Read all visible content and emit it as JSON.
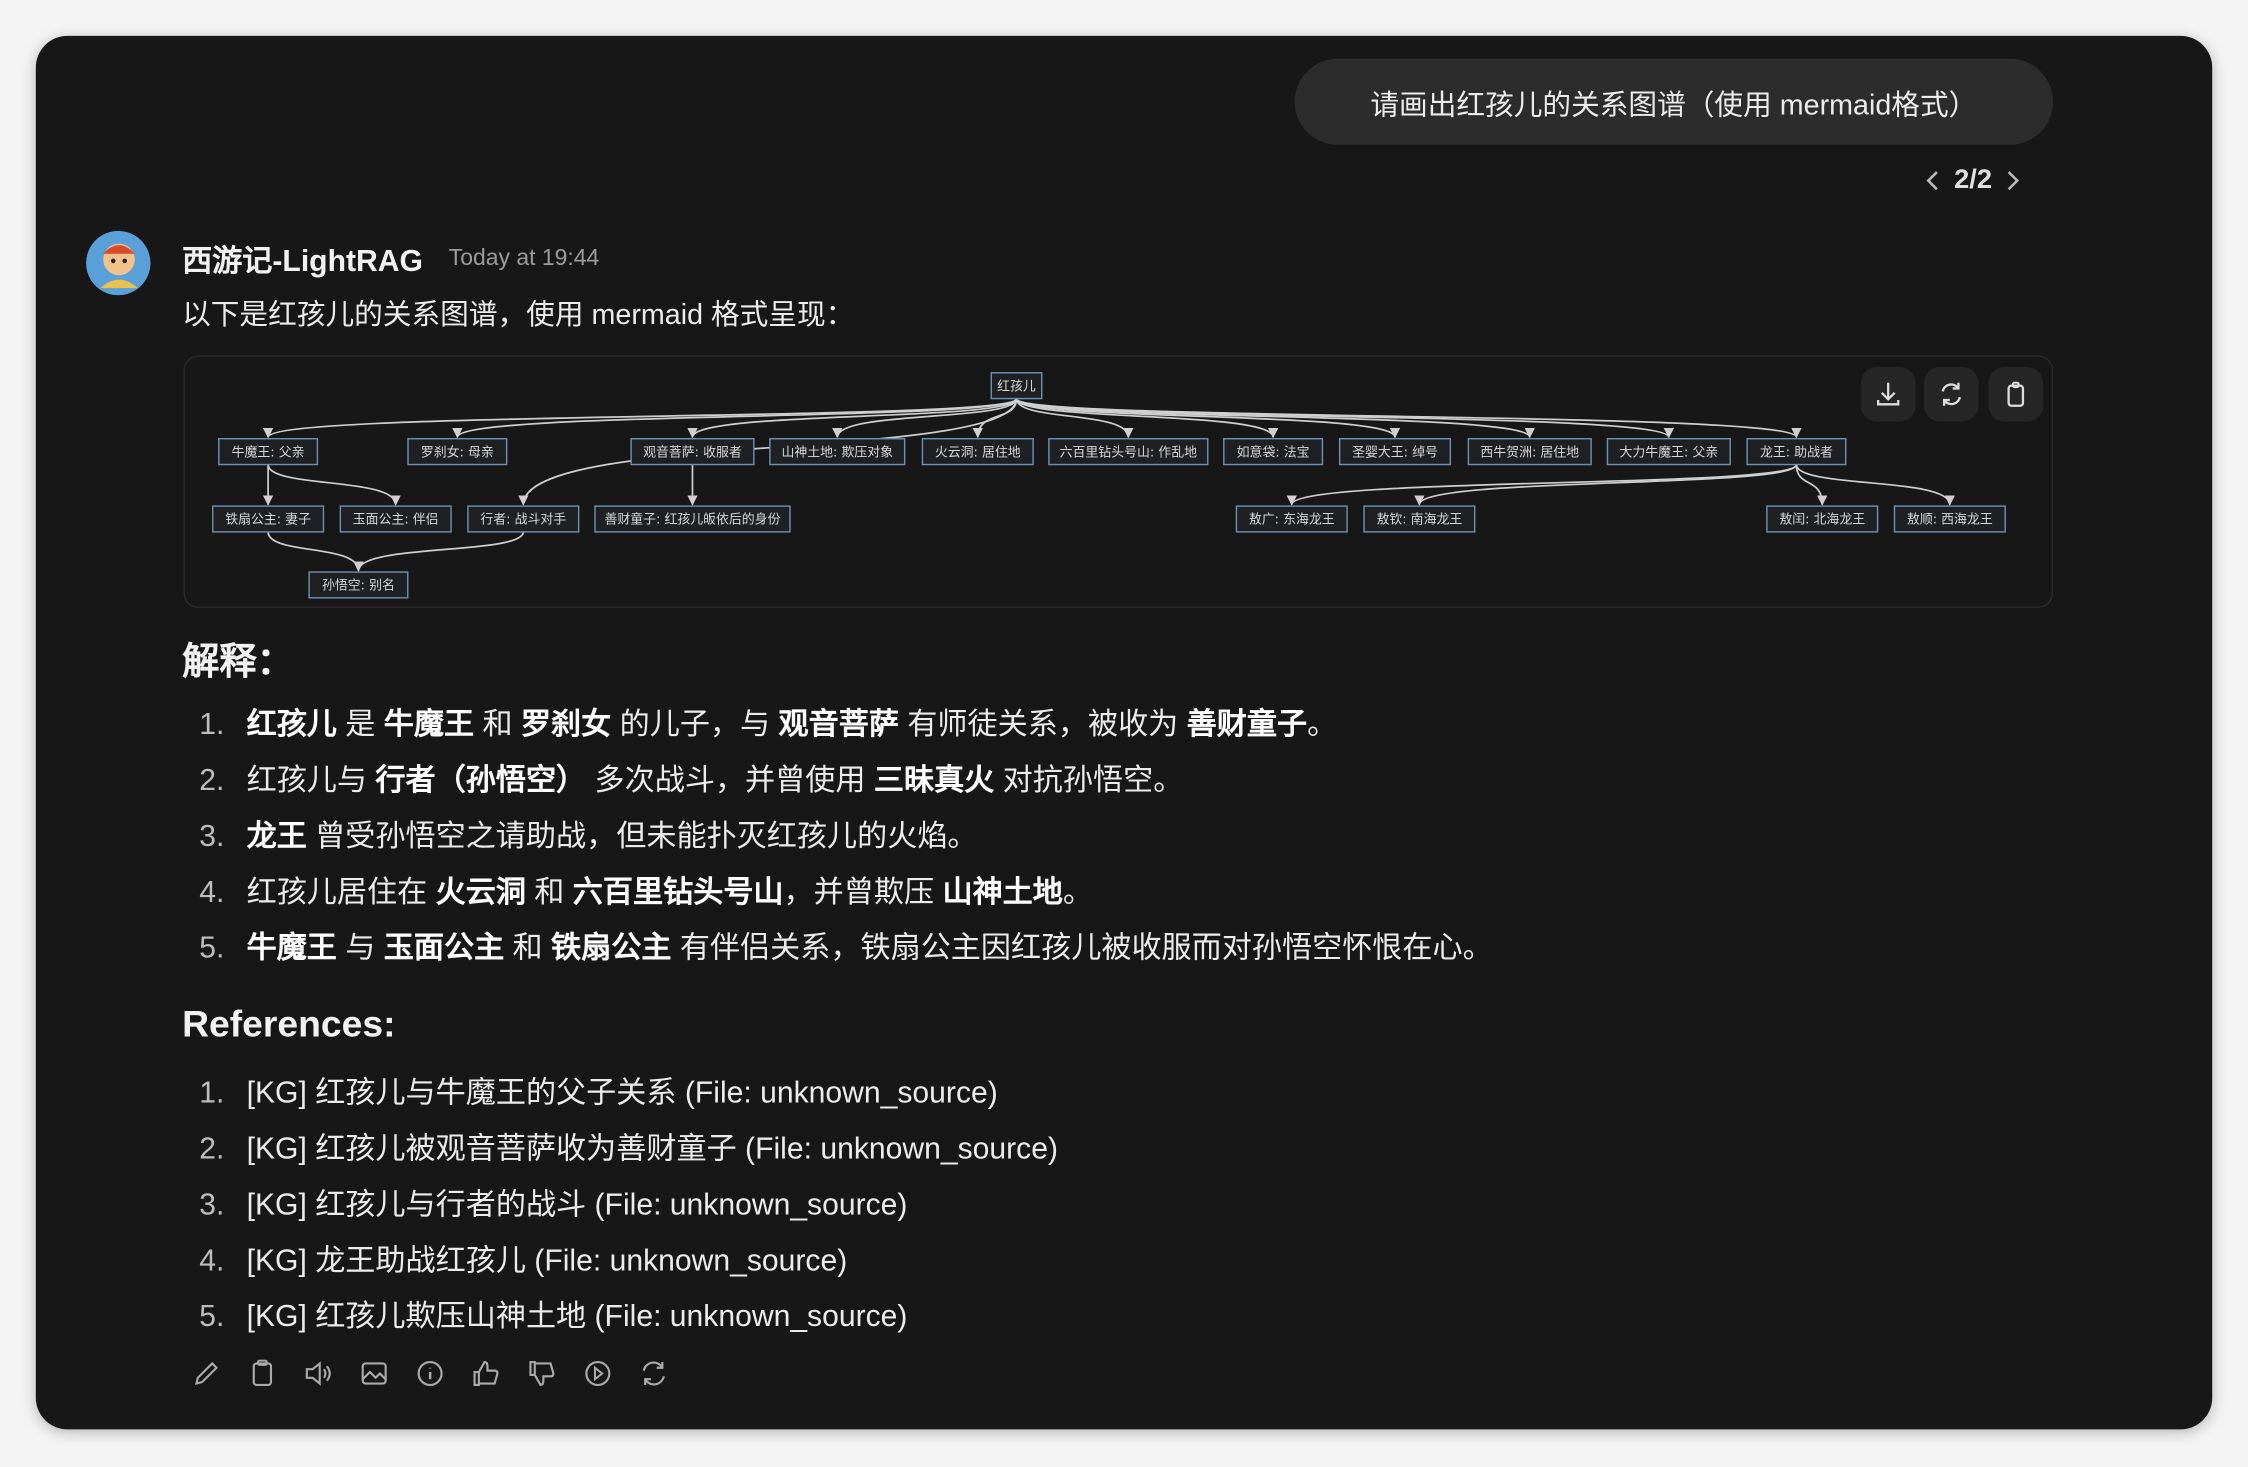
{
  "user_message": "请画出红孩儿的关系图谱（使用 mermaid格式）",
  "pager": {
    "label": "2/2"
  },
  "assistant": {
    "name": "西游记-LightRAG",
    "time": "Today at 19:44",
    "intro": "以下是红孩儿的关系图谱，使用 mermaid 格式呈现："
  },
  "diagram": {
    "toolbar": [
      {
        "icon": "download-icon"
      },
      {
        "icon": "refresh-icon"
      },
      {
        "icon": "clipboard-icon"
      }
    ],
    "nodes": [
      {
        "id": "root",
        "label": "红孩儿"
      },
      {
        "id": "nmw",
        "label": "牛魔王: 父亲"
      },
      {
        "id": "lcn",
        "label": "罗刹女: 母亲"
      },
      {
        "id": "gy",
        "label": "观音菩萨: 收服者"
      },
      {
        "id": "ss",
        "label": "山神土地: 欺压对象"
      },
      {
        "id": "hyd",
        "label": "火云洞: 居住地"
      },
      {
        "id": "lbl",
        "label": "六百里钻头号山: 作乱地"
      },
      {
        "id": "ryd",
        "label": "如意袋: 法宝"
      },
      {
        "id": "sy",
        "label": "圣婴大王: 绰号"
      },
      {
        "id": "xn",
        "label": "西牛贺洲: 居住地"
      },
      {
        "id": "dl",
        "label": "大力牛魔王: 父亲"
      },
      {
        "id": "lw",
        "label": "龙王: 助战者"
      },
      {
        "id": "tsgz",
        "label": "铁扇公主: 妻子"
      },
      {
        "id": "ymgz",
        "label": "玉面公主: 伴侣"
      },
      {
        "id": "xz",
        "label": "行者: 战斗对手"
      },
      {
        "id": "sc",
        "label": "善财童子: 红孩儿皈依后的身份"
      },
      {
        "id": "ag",
        "label": "敖广: 东海龙王"
      },
      {
        "id": "aq",
        "label": "敖钦: 南海龙王"
      },
      {
        "id": "ar",
        "label": "敖闰: 北海龙王"
      },
      {
        "id": "as",
        "label": "敖顺: 西海龙王"
      },
      {
        "id": "swk",
        "label": "孙悟空: 别名"
      }
    ],
    "edges": [
      [
        "root",
        "nmw"
      ],
      [
        "root",
        "lcn"
      ],
      [
        "root",
        "gy"
      ],
      [
        "root",
        "ss"
      ],
      [
        "root",
        "hyd"
      ],
      [
        "root",
        "lbl"
      ],
      [
        "root",
        "ryd"
      ],
      [
        "root",
        "sy"
      ],
      [
        "root",
        "xn"
      ],
      [
        "root",
        "dl"
      ],
      [
        "root",
        "lw"
      ],
      [
        "root",
        "xz"
      ],
      [
        "nmw",
        "tsgz"
      ],
      [
        "nmw",
        "ymgz"
      ],
      [
        "gy",
        "sc"
      ],
      [
        "tsgz",
        "swk"
      ],
      [
        "xz",
        "swk"
      ],
      [
        "lw",
        "ag"
      ],
      [
        "lw",
        "aq"
      ],
      [
        "lw",
        "ar"
      ],
      [
        "lw",
        "as"
      ]
    ]
  },
  "explanation": {
    "heading": "解释：",
    "items": [
      [
        {
          "t": "红孩儿",
          "b": true
        },
        {
          "t": " 是 "
        },
        {
          "t": "牛魔王",
          "b": true
        },
        {
          "t": " 和 "
        },
        {
          "t": "罗刹女",
          "b": true
        },
        {
          "t": " 的儿子，与 "
        },
        {
          "t": "观音菩萨",
          "b": true
        },
        {
          "t": " 有师徒关系，被收为 "
        },
        {
          "t": "善财童子",
          "b": true
        },
        {
          "t": "。"
        }
      ],
      [
        {
          "t": "红孩儿与 "
        },
        {
          "t": "行者（孙悟空）",
          "b": true
        },
        {
          "t": " 多次战斗，并曾使用 "
        },
        {
          "t": "三昧真火",
          "b": true
        },
        {
          "t": " 对抗孙悟空。"
        }
      ],
      [
        {
          "t": "龙王",
          "b": true
        },
        {
          "t": " 曾受孙悟空之请助战，但未能扑灭红孩儿的火焰。"
        }
      ],
      [
        {
          "t": "红孩儿居住在 "
        },
        {
          "t": "火云洞",
          "b": true
        },
        {
          "t": " 和 "
        },
        {
          "t": "六百里钻头号山",
          "b": true
        },
        {
          "t": "，并曾欺压 "
        },
        {
          "t": "山神土地",
          "b": true
        },
        {
          "t": "。"
        }
      ],
      [
        {
          "t": "牛魔王",
          "b": true
        },
        {
          "t": " 与 "
        },
        {
          "t": "玉面公主",
          "b": true
        },
        {
          "t": " 和 "
        },
        {
          "t": "铁扇公主",
          "b": true
        },
        {
          "t": " 有伴侣关系，铁扇公主因红孩儿被收服而对孙悟空怀恨在心。"
        }
      ]
    ]
  },
  "references": {
    "heading": "References:",
    "items": [
      "[KG] 红孩儿与牛魔王的父子关系 (File: unknown_source)",
      "[KG] 红孩儿被观音菩萨收为善财童子 (File: unknown_source)",
      "[KG] 红孩儿与行者的战斗 (File: unknown_source)",
      "[KG] 龙王助战红孩儿 (File: unknown_source)",
      "[KG] 红孩儿欺压山神土地 (File: unknown_source)"
    ]
  },
  "actions": [
    "edit-icon",
    "copy-icon",
    "speaker-icon",
    "image-icon",
    "info-icon",
    "thumbs-up-icon",
    "thumbs-down-icon",
    "play-icon",
    "regenerate-icon"
  ]
}
